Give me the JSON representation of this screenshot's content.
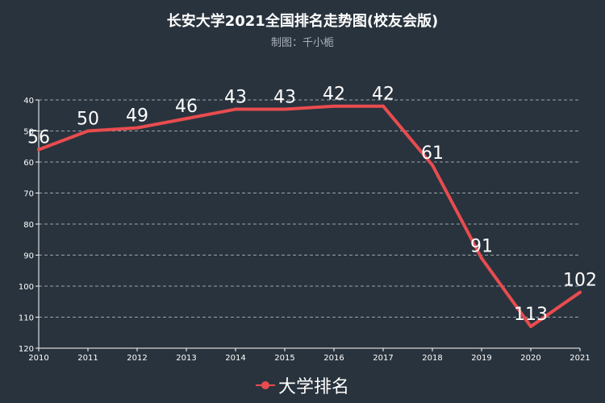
{
  "chart_data": {
    "type": "line",
    "title": "长安大学2021全国排名走势图(校友会版)",
    "subtitle": "制图：千小栀",
    "categories": [
      "2010",
      "2011",
      "2012",
      "2013",
      "2014",
      "2015",
      "2016",
      "2017",
      "2018",
      "2019",
      "2020",
      "2021"
    ],
    "series": [
      {
        "name": "大学排名",
        "values": [
          56,
          50,
          49,
          46,
          43,
          43,
          42,
          42,
          61,
          91,
          113,
          102
        ],
        "color": "#e84c4f"
      }
    ],
    "y_ticks": [
      40,
      50,
      60,
      70,
      80,
      90,
      100,
      110,
      120
    ],
    "ylim": [
      40,
      120
    ],
    "y_inverted": true,
    "grid": true,
    "legend": "bottom"
  }
}
